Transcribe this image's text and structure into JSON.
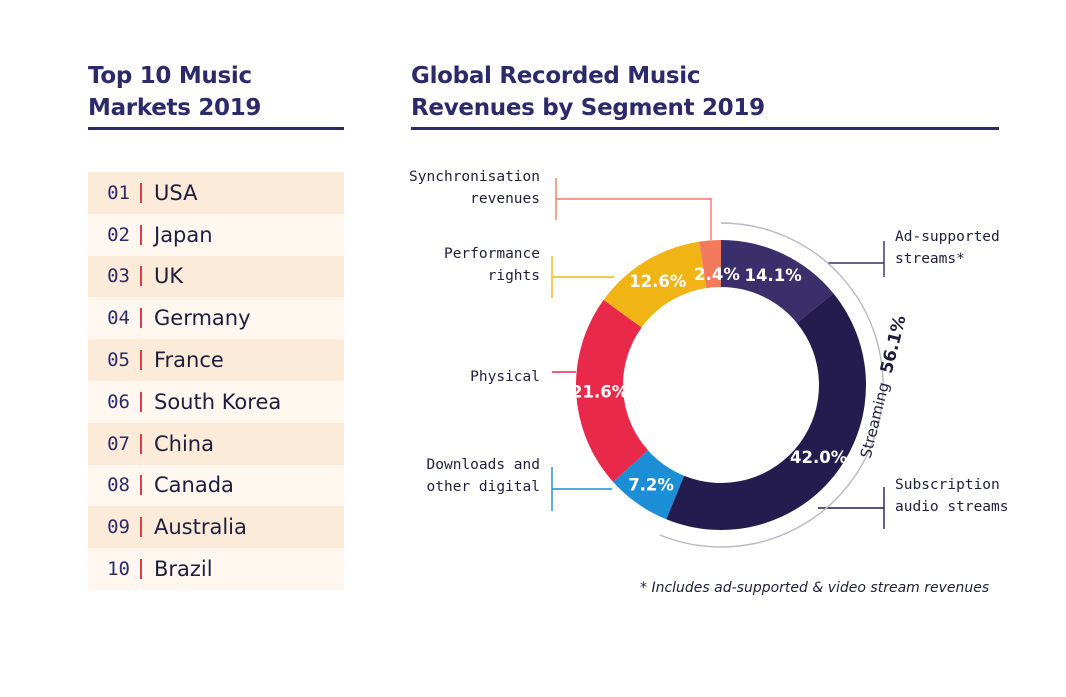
{
  "left": {
    "title_line1": "Top 10 Music",
    "title_line2": "Markets 2019",
    "markets": [
      {
        "rank": "01",
        "name": "USA"
      },
      {
        "rank": "02",
        "name": "Japan"
      },
      {
        "rank": "03",
        "name": "UK"
      },
      {
        "rank": "04",
        "name": "Germany"
      },
      {
        "rank": "05",
        "name": "France"
      },
      {
        "rank": "06",
        "name": "South Korea"
      },
      {
        "rank": "07",
        "name": "China"
      },
      {
        "rank": "08",
        "name": "Canada"
      },
      {
        "rank": "09",
        "name": "Australia"
      },
      {
        "rank": "10",
        "name": "Brazil"
      }
    ]
  },
  "right": {
    "title_line1": "Global Recorded Music",
    "title_line2": "Revenues by Segment 2019",
    "footnote": "* Includes ad-supported & video stream revenues"
  },
  "chart_data": {
    "type": "pie",
    "title": "Global Recorded Music Revenues by Segment 2019",
    "donut": true,
    "slices": [
      {
        "name_lines": [
          "Ad-supported",
          "streams*"
        ],
        "value": 14.1,
        "label": "14.1%",
        "color": "#3a2e6b"
      },
      {
        "name_lines": [
          "Subscription",
          "audio streams"
        ],
        "value": 42.0,
        "label": "42.0%",
        "color": "#241c4e"
      },
      {
        "name_lines": [
          "Downloads and",
          "other digital"
        ],
        "value": 7.2,
        "label": "7.2%",
        "color": "#1c8ed6"
      },
      {
        "name_lines": [
          "Physical"
        ],
        "value": 21.6,
        "label": "21.6%",
        "color": "#e8294a"
      },
      {
        "name_lines": [
          "Performance",
          "rights"
        ],
        "value": 12.6,
        "label": "12.6%",
        "color": "#f0b514"
      },
      {
        "name_lines": [
          "Synchronisation",
          "revenues"
        ],
        "value": 2.4,
        "label": "2.4%",
        "color": "#f47a5e"
      }
    ],
    "streaming_total": {
      "label": "Streaming",
      "value": 56.1,
      "value_label": "56.1%"
    }
  }
}
